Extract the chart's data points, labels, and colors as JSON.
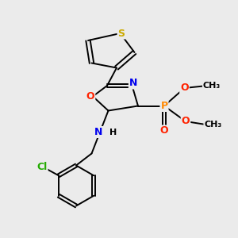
{
  "bg_color": "#ebebeb",
  "atom_colors": {
    "S": "#ccaa00",
    "O": "#ff2200",
    "N": "#0000ee",
    "P": "#ff8800",
    "Cl": "#22aa00",
    "C": "#000000",
    "H": "#000000"
  },
  "bond_color": "#000000",
  "lw": 1.4
}
